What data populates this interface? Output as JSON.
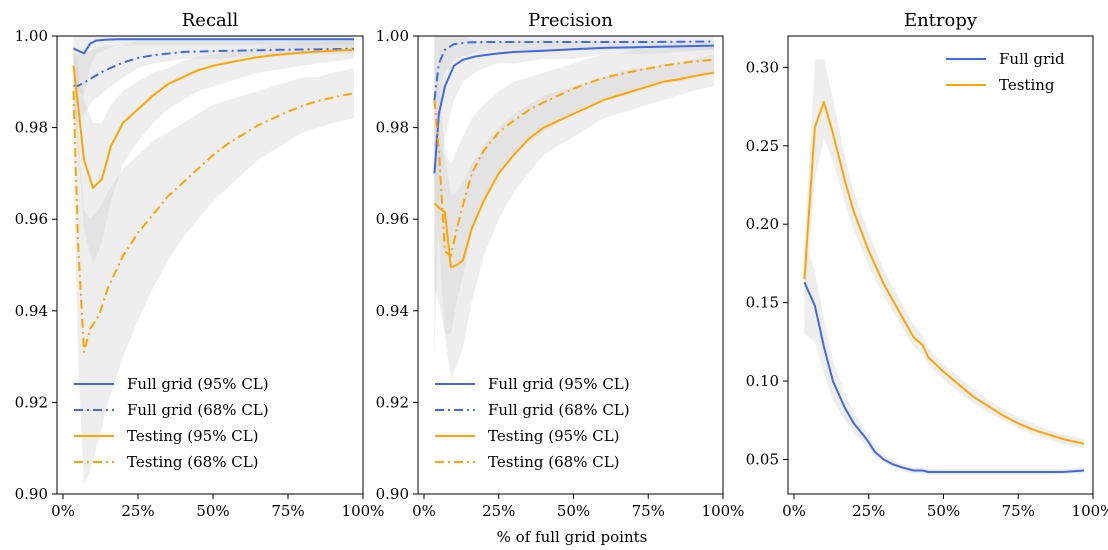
{
  "figure": {
    "shared_xlabel": "% of full grid points",
    "colors": {
      "full_grid": "#4169e1",
      "testing": "#ffa500",
      "band": "#d3d3d3"
    }
  },
  "chart_data": [
    {
      "type": "line",
      "title": "Recall",
      "xlabel": "",
      "ylabel": "",
      "xlim": [
        -2,
        100
      ],
      "ylim": [
        0.9,
        1.0
      ],
      "x_ticks": [
        0,
        25,
        50,
        75,
        100
      ],
      "x_tick_labels": [
        "0%",
        "25%",
        "50%",
        "75%",
        "100%"
      ],
      "y_ticks": [
        0.9,
        0.92,
        0.94,
        0.96,
        0.98,
        1.0
      ],
      "y_tick_labels": [
        "0.90",
        "0.92",
        "0.94",
        "0.96",
        "0.98",
        "1.00"
      ],
      "legend_position": "bottom-left",
      "series": [
        {
          "name": "Full grid (95% CL)",
          "style": "solid",
          "color": "#4169e1",
          "x": [
            3.5,
            5,
            7,
            9,
            11,
            14,
            18,
            25,
            35,
            50,
            75,
            97
          ],
          "y": [
            0.9973,
            0.9968,
            0.9962,
            0.9983,
            0.999,
            0.9992,
            0.9993,
            0.9993,
            0.9993,
            0.9993,
            0.9993,
            0.9993
          ],
          "band_low": [
            0.99,
            0.988,
            0.987,
            0.993,
            0.996,
            0.997,
            0.998,
            0.998,
            0.998,
            0.998,
            0.998,
            0.998
          ],
          "band_high": [
            1.0,
            1.0,
            1.0,
            1.0,
            1.0,
            1.0,
            1.0,
            1.0,
            1.0,
            1.0,
            1.0,
            1.0
          ]
        },
        {
          "name": "Full grid (68% CL)",
          "style": "dashdot",
          "color": "#4169e1",
          "x": [
            3.5,
            5,
            7,
            10,
            14,
            20,
            25,
            30,
            40,
            50,
            75,
            97
          ],
          "y": [
            0.9892,
            0.9891,
            0.9898,
            0.991,
            0.9925,
            0.9942,
            0.9952,
            0.9958,
            0.9965,
            0.9967,
            0.997,
            0.9972
          ],
          "band_low": [
            0.982,
            0.981,
            0.983,
            0.986,
            0.988,
            0.991,
            0.993,
            0.994,
            0.995,
            0.995,
            0.996,
            0.996
          ],
          "band_high": [
            0.996,
            0.996,
            0.996,
            0.997,
            0.998,
            0.998,
            0.999,
            0.999,
            0.999,
            0.999,
            0.999,
            0.999
          ]
        },
        {
          "name": "Testing (95% CL)",
          "style": "solid",
          "color": "#ffa500",
          "x": [
            3.5,
            5,
            7,
            10,
            13,
            16,
            20,
            25,
            30,
            35,
            40,
            45,
            50,
            55,
            60,
            65,
            70,
            75,
            80,
            85,
            90,
            97
          ],
          "y": [
            0.9935,
            0.985,
            0.973,
            0.9668,
            0.9688,
            0.976,
            0.981,
            0.984,
            0.987,
            0.9895,
            0.991,
            0.9925,
            0.9935,
            0.9942,
            0.9948,
            0.9954,
            0.9958,
            0.9961,
            0.9964,
            0.9966,
            0.9968,
            0.997
          ],
          "band_low": [
            0.986,
            0.975,
            0.958,
            0.95,
            0.955,
            0.964,
            0.972,
            0.977,
            0.981,
            0.984,
            0.986,
            0.988,
            0.989,
            0.99,
            0.991,
            0.992,
            0.9925,
            0.993,
            0.9935,
            0.994,
            0.9945,
            0.995
          ],
          "band_high": [
            0.998,
            0.993,
            0.986,
            0.981,
            0.981,
            0.985,
            0.988,
            0.99,
            0.992,
            0.993,
            0.9945,
            0.9955,
            0.996,
            0.9965,
            0.997,
            0.9975,
            0.998,
            0.998,
            0.9985,
            0.9985,
            0.999,
            0.999
          ]
        },
        {
          "name": "Testing (68% CL)",
          "style": "dashdot",
          "color": "#ffa500",
          "x": [
            3.5,
            5,
            7,
            9,
            12,
            15,
            20,
            25,
            30,
            35,
            40,
            45,
            50,
            55,
            60,
            65,
            70,
            75,
            80,
            85,
            90,
            97
          ],
          "y": [
            0.988,
            0.955,
            0.931,
            0.936,
            0.939,
            0.945,
            0.952,
            0.957,
            0.961,
            0.965,
            0.968,
            0.971,
            0.974,
            0.9765,
            0.9785,
            0.9805,
            0.982,
            0.9835,
            0.9848,
            0.9858,
            0.9866,
            0.9875
          ],
          "band_low": [
            0.975,
            0.93,
            0.902,
            0.905,
            0.912,
            0.92,
            0.93,
            0.938,
            0.945,
            0.951,
            0.956,
            0.96,
            0.964,
            0.967,
            0.97,
            0.973,
            0.975,
            0.977,
            0.979,
            0.98,
            0.981,
            0.982
          ],
          "band_high": [
            0.996,
            0.98,
            0.962,
            0.96,
            0.962,
            0.966,
            0.971,
            0.974,
            0.977,
            0.979,
            0.981,
            0.983,
            0.985,
            0.986,
            0.987,
            0.988,
            0.989,
            0.99,
            0.991,
            0.991,
            0.992,
            0.993
          ]
        }
      ]
    },
    {
      "type": "line",
      "title": "Precision",
      "xlabel": "",
      "ylabel": "",
      "xlim": [
        -2,
        100
      ],
      "ylim": [
        0.9,
        1.0
      ],
      "x_ticks": [
        0,
        25,
        50,
        75,
        100
      ],
      "x_tick_labels": [
        "0%",
        "25%",
        "50%",
        "75%",
        "100%"
      ],
      "y_ticks": [
        0.9,
        0.92,
        0.94,
        0.96,
        0.98,
        1.0
      ],
      "y_tick_labels": [
        "0.90",
        "0.92",
        "0.94",
        "0.96",
        "0.98",
        "1.00"
      ],
      "legend_position": "bottom-right",
      "series": [
        {
          "name": "Full grid (95% CL)",
          "style": "solid",
          "color": "#4169e1",
          "x": [
            3.5,
            5,
            7,
            10,
            13,
            17,
            20,
            25,
            30,
            40,
            50,
            60,
            75,
            97
          ],
          "y": [
            0.97,
            0.983,
            0.989,
            0.9935,
            0.9948,
            0.9955,
            0.9958,
            0.9962,
            0.9965,
            0.9968,
            0.9971,
            0.9974,
            0.9976,
            0.9979
          ],
          "band_low": [
            0.93,
            0.965,
            0.978,
            0.986,
            0.99,
            0.992,
            0.993,
            0.994,
            0.994,
            0.995,
            0.995,
            0.996,
            0.996,
            0.997
          ],
          "band_high": [
            1.0,
            1.0,
            1.0,
            1.0,
            1.0,
            0.999,
            0.999,
            0.999,
            0.999,
            0.999,
            0.999,
            0.999,
            0.999,
            0.999
          ]
        },
        {
          "name": "Full grid (68% CL)",
          "style": "dashdot",
          "color": "#4169e1",
          "x": [
            3.5,
            5,
            7,
            10,
            15,
            20,
            30,
            50,
            75,
            97
          ],
          "y": [
            0.986,
            0.994,
            0.997,
            0.9982,
            0.9986,
            0.9987,
            0.9987,
            0.9987,
            0.9987,
            0.9988
          ],
          "band_low": [
            0.965,
            0.985,
            0.992,
            0.995,
            0.996,
            0.997,
            0.997,
            0.997,
            0.997,
            0.997
          ],
          "band_high": [
            1.0,
            1.0,
            1.0,
            1.0,
            1.0,
            1.0,
            1.0,
            1.0,
            1.0,
            1.0
          ]
        },
        {
          "name": "Testing (95% CL)",
          "style": "solid",
          "color": "#ffa500",
          "x": [
            3.5,
            5,
            7,
            9,
            11,
            13,
            16,
            20,
            25,
            30,
            35,
            40,
            45,
            50,
            55,
            60,
            65,
            70,
            75,
            80,
            85,
            90,
            97
          ],
          "y": [
            0.9635,
            0.9625,
            0.9615,
            0.9495,
            0.95,
            0.951,
            0.958,
            0.964,
            0.97,
            0.974,
            0.9775,
            0.98,
            0.9815,
            0.983,
            0.9845,
            0.986,
            0.987,
            0.988,
            0.989,
            0.99,
            0.9905,
            0.9912,
            0.992
          ],
          "band_low": [
            0.945,
            0.942,
            0.935,
            0.925,
            0.928,
            0.932,
            0.942,
            0.952,
            0.96,
            0.966,
            0.97,
            0.974,
            0.976,
            0.978,
            0.98,
            0.982,
            0.983,
            0.984,
            0.985,
            0.986,
            0.987,
            0.988,
            0.989
          ],
          "band_high": [
            0.978,
            0.976,
            0.974,
            0.965,
            0.966,
            0.968,
            0.972,
            0.976,
            0.98,
            0.983,
            0.985,
            0.987,
            0.988,
            0.989,
            0.99,
            0.991,
            0.992,
            0.993,
            0.993,
            0.994,
            0.994,
            0.995,
            0.996
          ]
        },
        {
          "name": "Testing (68% CL)",
          "style": "dashdot",
          "color": "#ffa500",
          "x": [
            3.5,
            5,
            7,
            9,
            11,
            13,
            16,
            20,
            25,
            30,
            35,
            40,
            45,
            50,
            55,
            60,
            65,
            70,
            75,
            80,
            85,
            90,
            97
          ],
          "y": [
            0.986,
            0.975,
            0.953,
            0.952,
            0.958,
            0.963,
            0.97,
            0.975,
            0.979,
            0.9815,
            0.9838,
            0.9855,
            0.987,
            0.9885,
            0.9898,
            0.9908,
            0.9916,
            0.9923,
            0.9929,
            0.9935,
            0.994,
            0.9944,
            0.9948
          ],
          "band_low": [
            0.97,
            0.955,
            0.935,
            0.935,
            0.942,
            0.948,
            0.957,
            0.964,
            0.97,
            0.974,
            0.977,
            0.979,
            0.981,
            0.983,
            0.985,
            0.986,
            0.987,
            0.988,
            0.989,
            0.99,
            0.99,
            0.991,
            0.992
          ],
          "band_high": [
            0.996,
            0.99,
            0.975,
            0.972,
            0.975,
            0.978,
            0.982,
            0.985,
            0.988,
            0.99,
            0.991,
            0.992,
            0.993,
            0.994,
            0.995,
            0.996,
            0.996,
            0.997,
            0.997,
            0.997,
            0.998,
            0.998,
            0.998
          ]
        }
      ]
    },
    {
      "type": "line",
      "title": "Entropy",
      "xlabel": "",
      "ylabel": "",
      "xlim": [
        -2,
        100
      ],
      "ylim": [
        0.028,
        0.32
      ],
      "x_ticks": [
        0,
        25,
        50,
        75,
        100
      ],
      "x_tick_labels": [
        "0%",
        "25%",
        "50%",
        "75%",
        "100%"
      ],
      "y_ticks": [
        0.05,
        0.1,
        0.15,
        0.2,
        0.25,
        0.3
      ],
      "y_tick_labels": [
        "0.05",
        "0.10",
        "0.15",
        "0.20",
        "0.25",
        "0.30"
      ],
      "legend_position": "top-right",
      "series": [
        {
          "name": "Full grid",
          "style": "solid",
          "color": "#4169e1",
          "x": [
            3.5,
            7,
            10,
            13,
            17,
            20,
            23,
            25,
            27,
            30,
            33,
            36,
            40,
            43,
            45,
            48,
            50,
            55,
            60,
            65,
            70,
            75,
            80,
            85,
            90,
            97
          ],
          "y": [
            0.163,
            0.148,
            0.122,
            0.1,
            0.083,
            0.073,
            0.066,
            0.061,
            0.055,
            0.05,
            0.047,
            0.045,
            0.043,
            0.043,
            0.042,
            0.042,
            0.042,
            0.042,
            0.042,
            0.042,
            0.042,
            0.042,
            0.042,
            0.042,
            0.042,
            0.043
          ],
          "band_low": [
            0.13,
            0.125,
            0.105,
            0.088,
            0.075,
            0.067,
            0.061,
            0.057,
            0.052,
            0.048,
            0.045,
            0.043,
            0.041,
            0.041,
            0.04,
            0.04,
            0.04,
            0.04,
            0.04,
            0.04,
            0.04,
            0.04,
            0.04,
            0.04,
            0.041,
            0.041
          ],
          "band_high": [
            0.19,
            0.17,
            0.14,
            0.113,
            0.092,
            0.08,
            0.071,
            0.066,
            0.059,
            0.053,
            0.05,
            0.047,
            0.045,
            0.045,
            0.044,
            0.044,
            0.044,
            0.044,
            0.044,
            0.044,
            0.044,
            0.044,
            0.044,
            0.044,
            0.044,
            0.045
          ]
        },
        {
          "name": "Testing",
          "style": "solid",
          "color": "#ffa500",
          "x": [
            3.5,
            7,
            10,
            13,
            17,
            20,
            25,
            30,
            35,
            40,
            43,
            45,
            50,
            55,
            60,
            65,
            70,
            75,
            80,
            85,
            90,
            97
          ],
          "y": [
            0.165,
            0.262,
            0.278,
            0.258,
            0.228,
            0.208,
            0.183,
            0.162,
            0.145,
            0.128,
            0.123,
            0.115,
            0.106,
            0.098,
            0.09,
            0.084,
            0.078,
            0.073,
            0.069,
            0.066,
            0.063,
            0.06
          ],
          "band_low": [
            0.15,
            0.228,
            0.255,
            0.24,
            0.214,
            0.196,
            0.173,
            0.154,
            0.138,
            0.122,
            0.117,
            0.11,
            0.101,
            0.093,
            0.086,
            0.08,
            0.075,
            0.07,
            0.066,
            0.063,
            0.06,
            0.057
          ],
          "band_high": [
            0.18,
            0.305,
            0.305,
            0.28,
            0.243,
            0.221,
            0.194,
            0.171,
            0.153,
            0.136,
            0.129,
            0.121,
            0.111,
            0.103,
            0.095,
            0.088,
            0.082,
            0.077,
            0.073,
            0.069,
            0.066,
            0.063
          ]
        }
      ]
    }
  ]
}
